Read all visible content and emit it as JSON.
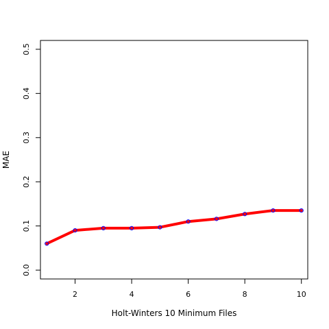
{
  "chart_data": {
    "type": "line",
    "title": "",
    "xlabel": "Holt-Winters 10 Minimum Files",
    "ylabel": "MAE",
    "x": [
      1,
      2,
      3,
      4,
      5,
      6,
      7,
      8,
      9,
      10
    ],
    "series": [
      {
        "values": [
          0.06,
          0.09,
          0.095,
          0.095,
          0.097,
          0.11,
          0.116,
          0.127,
          0.135,
          0.135
        ],
        "line_color": "#ff0000",
        "marker_color": "#0000ff"
      }
    ],
    "xlim": [
      0.775,
      10.225
    ],
    "ylim": [
      -0.02,
      0.52
    ],
    "xticks": [
      2,
      4,
      6,
      8,
      10
    ],
    "xtick_labels": [
      "2",
      "4",
      "6",
      "8",
      "10"
    ],
    "yticks": [
      0.0,
      0.1,
      0.2,
      0.3,
      0.4,
      0.5
    ],
    "ytick_labels": [
      "0.0",
      "0.1",
      "0.2",
      "0.3",
      "0.4",
      "0.5"
    ],
    "grid": false,
    "legend": "none",
    "axis_color": "#000000",
    "background": "#ffffff"
  }
}
